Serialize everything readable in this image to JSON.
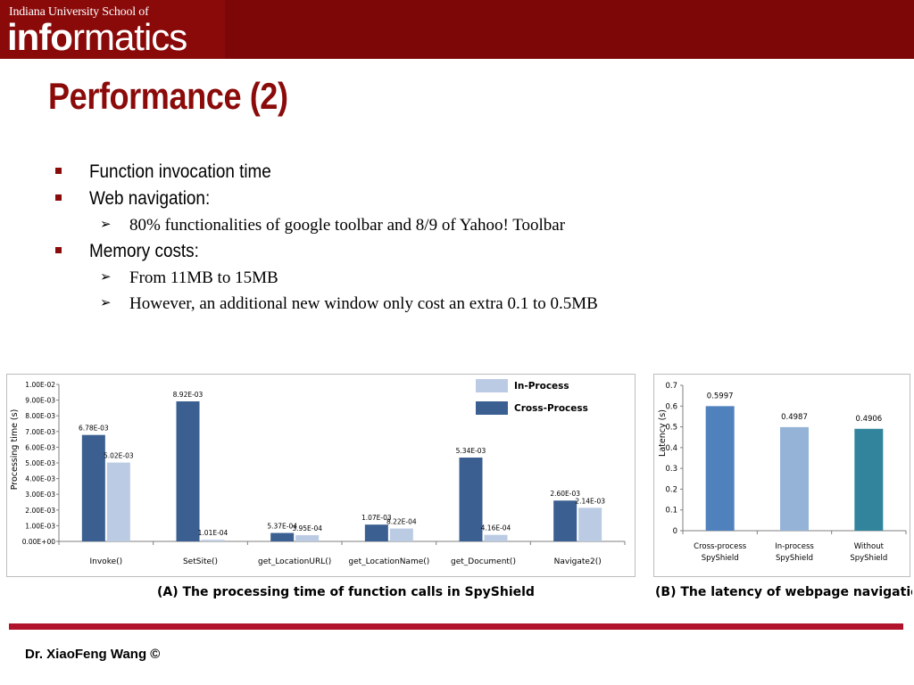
{
  "header": {
    "logo_line1": "Indiana University School of",
    "logo_bold": "info",
    "logo_rest": "rmatics"
  },
  "title": "Performance (2)",
  "bullets": [
    {
      "level": 1,
      "text": "Function invocation time"
    },
    {
      "level": 1,
      "text": "Web navigation:"
    },
    {
      "level": 2,
      "text": "80% functionalities of google toolbar and 8/9 of Yahoo! Toolbar"
    },
    {
      "level": 1,
      "text": "Memory costs:"
    },
    {
      "level": 2,
      "text": "From 11MB to 15MB"
    },
    {
      "level": 2,
      "text": "However, an additional new window only cost an extra 0.1 to 0.5MB"
    }
  ],
  "chart_data": [
    {
      "type": "bar",
      "title": "",
      "ylabel": "Processing time (s)",
      "xlabel": "",
      "ylim": [
        0,
        0.01
      ],
      "yticks": [
        "0.00E+00",
        "1.00E-03",
        "2.00E-03",
        "3.00E-03",
        "4.00E-03",
        "5.00E-03",
        "6.00E-03",
        "7.00E-03",
        "8.00E-03",
        "9.00E-03",
        "1.00E-02"
      ],
      "categories": [
        "Invoke()",
        "SetSite()",
        "get_LocationURL()",
        "get_LocationName()",
        "get_Document()",
        "Navigate2()"
      ],
      "legend_position": "top-right",
      "series": [
        {
          "name": "Cross-Process",
          "color": "#3b5f91",
          "values": [
            0.00678,
            0.00892,
            0.000537,
            0.00107,
            0.00534,
            0.0026
          ],
          "labels": [
            "6.78E-03",
            "8.92E-03",
            "5.37E-04",
            "1.07E-03",
            "5.34E-03",
            "2.60E-03"
          ]
        },
        {
          "name": "In-Process",
          "color": "#bccbe4",
          "values": [
            0.00502,
            0.000101,
            0.000395,
            0.000822,
            0.000416,
            0.00214
          ],
          "labels": [
            "5.02E-03",
            "1.01E-04",
            "3.95E-04",
            "8.22E-04",
            "4.16E-04",
            "2.14E-03"
          ]
        }
      ],
      "legend_order": [
        "In-Process",
        "Cross-Process"
      ],
      "caption": "(A) The processing time of function calls in SpyShield"
    },
    {
      "type": "bar",
      "title": "",
      "ylabel": "Latency (s)",
      "xlabel": "",
      "ylim": [
        0,
        0.7
      ],
      "yticks": [
        "0",
        "0.1",
        "0.2",
        "0.3",
        "0.4",
        "0.5",
        "0.6",
        "0.7"
      ],
      "categories": [
        [
          "Cross-process",
          "SpyShield"
        ],
        [
          "In-process",
          "SpyShield"
        ],
        [
          "Without",
          "SpyShield"
        ]
      ],
      "values": [
        0.5997,
        0.4987,
        0.4906
      ],
      "labels": [
        "0.5997",
        "0.4987",
        "0.4906"
      ],
      "colors": [
        "#4f81bd",
        "#95b3d7",
        "#31849b"
      ],
      "caption": "(B) The latency of webpage navigation"
    }
  ],
  "footer": "Dr. XiaoFeng Wang  ©"
}
